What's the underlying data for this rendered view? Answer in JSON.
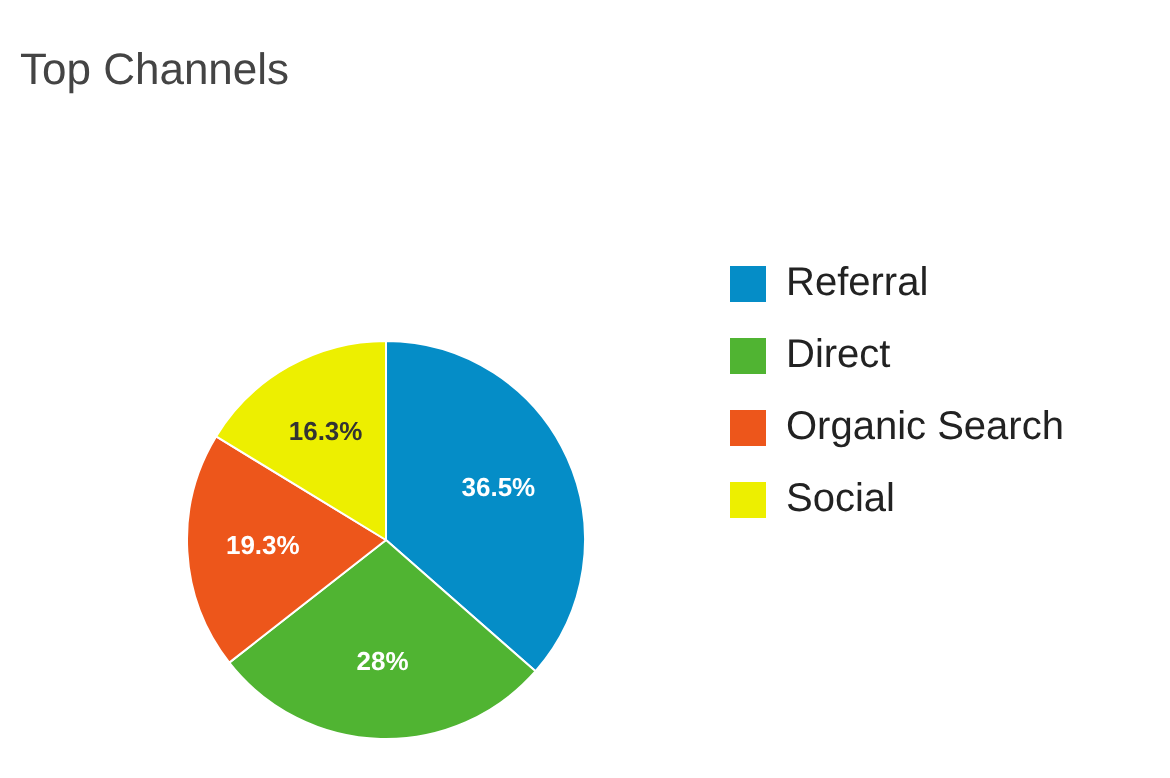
{
  "chart_data": {
    "type": "pie",
    "title": "Top Channels",
    "categories": [
      "Referral",
      "Direct",
      "Organic Search",
      "Social"
    ],
    "values": [
      36.5,
      28,
      19.3,
      16.3
    ],
    "colors": [
      "#058dc7",
      "#50b432",
      "#ed561b",
      "#edef00"
    ],
    "value_labels": [
      "36.5%",
      "28%",
      "19.3%",
      "16.3%"
    ],
    "legend": "right"
  }
}
